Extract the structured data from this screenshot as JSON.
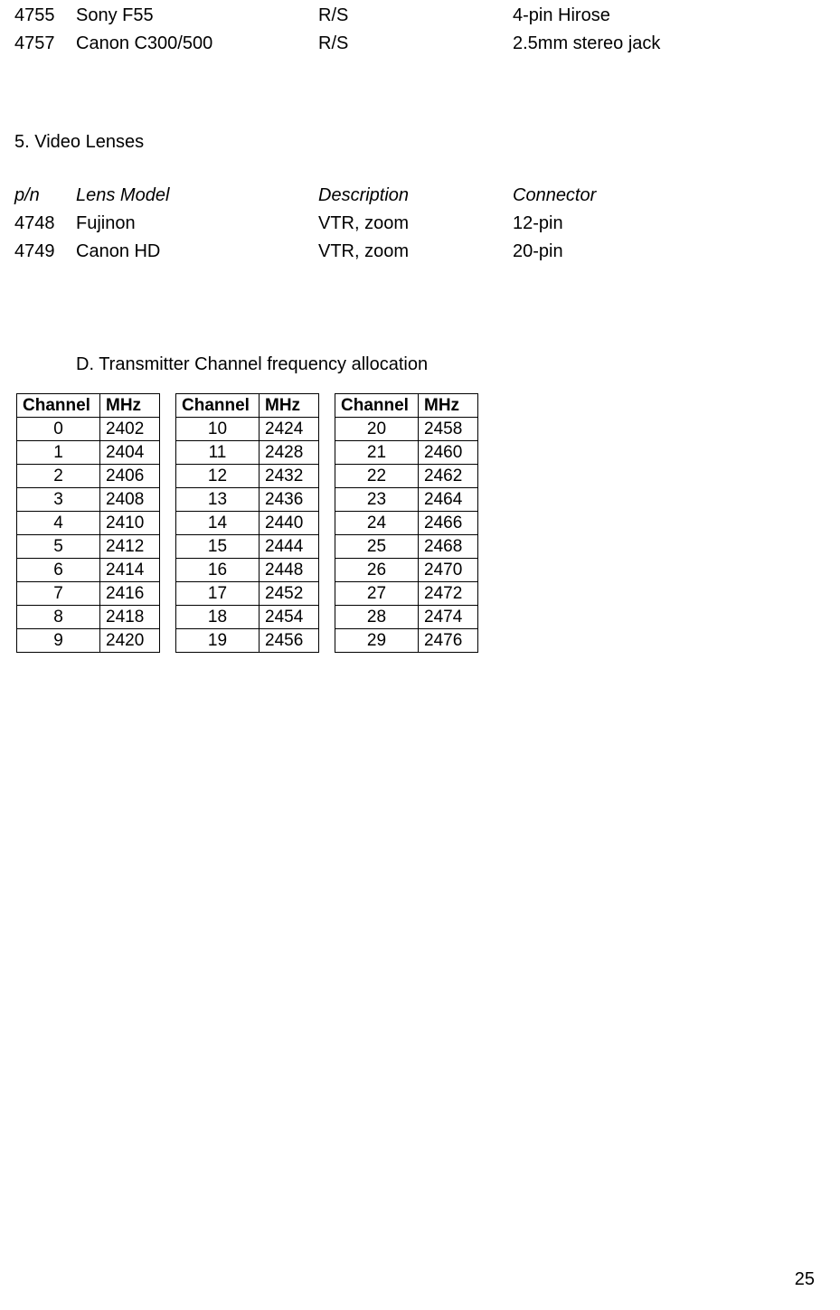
{
  "colors": {
    "text": "#000000",
    "background": "#ffffff",
    "border": "#000000"
  },
  "fonts": {
    "body": "Lucida Sans / Segoe UI",
    "table": "Arial",
    "body_size": 20,
    "table_size": 19
  },
  "cameras": {
    "rows": [
      {
        "pn": "4755",
        "model": "Sony F55",
        "desc": "R/S",
        "connector": "4-pin Hirose"
      },
      {
        "pn": "4757",
        "model": "Canon C300/500",
        "desc": "R/S",
        "connector": "2.5mm stereo jack"
      }
    ]
  },
  "section5": {
    "title": "5. Video Lenses",
    "headers": {
      "pn": "p/n",
      "model": "Lens Model",
      "desc": "Description",
      "connector": "Connector"
    },
    "rows": [
      {
        "pn": "4748",
        "model": "Fujinon",
        "desc": "VTR, zoom",
        "connector": "12-pin"
      },
      {
        "pn": "4749",
        "model": "Canon HD",
        "desc": "VTR, zoom",
        "connector": "20-pin"
      }
    ]
  },
  "sectionD": {
    "title": "D. Transmitter Channel frequency allocation",
    "headers": {
      "ch": "Channel",
      "mhz": "MHz"
    },
    "cols": [
      [
        {
          "ch": "0",
          "mhz": "2402"
        },
        {
          "ch": "1",
          "mhz": "2404"
        },
        {
          "ch": "2",
          "mhz": "2406"
        },
        {
          "ch": "3",
          "mhz": "2408"
        },
        {
          "ch": "4",
          "mhz": "2410"
        },
        {
          "ch": "5",
          "mhz": "2412"
        },
        {
          "ch": "6",
          "mhz": "2414"
        },
        {
          "ch": "7",
          "mhz": "2416"
        },
        {
          "ch": "8",
          "mhz": "2418"
        },
        {
          "ch": "9",
          "mhz": "2420"
        }
      ],
      [
        {
          "ch": "10",
          "mhz": "2424"
        },
        {
          "ch": "11",
          "mhz": "2428"
        },
        {
          "ch": "12",
          "mhz": "2432"
        },
        {
          "ch": "13",
          "mhz": "2436"
        },
        {
          "ch": "14",
          "mhz": "2440"
        },
        {
          "ch": "15",
          "mhz": "2444"
        },
        {
          "ch": "16",
          "mhz": "2448"
        },
        {
          "ch": "17",
          "mhz": "2452"
        },
        {
          "ch": "18",
          "mhz": "2454"
        },
        {
          "ch": "19",
          "mhz": "2456"
        }
      ],
      [
        {
          "ch": "20",
          "mhz": "2458"
        },
        {
          "ch": "21",
          "mhz": "2460"
        },
        {
          "ch": "22",
          "mhz": "2462"
        },
        {
          "ch": "23",
          "mhz": "2464"
        },
        {
          "ch": "24",
          "mhz": "2466"
        },
        {
          "ch": "25",
          "mhz": "2468"
        },
        {
          "ch": "26",
          "mhz": "2470"
        },
        {
          "ch": "27",
          "mhz": "2472"
        },
        {
          "ch": "28",
          "mhz": "2474"
        },
        {
          "ch": "29",
          "mhz": "2476"
        }
      ]
    ]
  },
  "page_number": "25"
}
